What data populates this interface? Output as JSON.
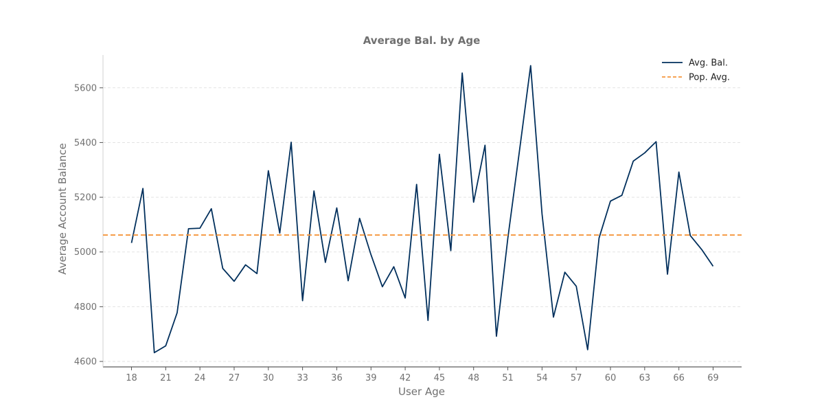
{
  "chart_data": {
    "type": "line",
    "title": "Average Bal. by Age",
    "xlabel": "User Age",
    "ylabel": "Average Account Balance",
    "xlim": [
      15.5,
      71.5
    ],
    "ylim": [
      4580,
      5720
    ],
    "x_ticks": [
      18,
      21,
      24,
      27,
      30,
      33,
      36,
      39,
      42,
      45,
      48,
      51,
      54,
      57,
      60,
      63,
      66,
      69
    ],
    "y_ticks": [
      4600,
      4800,
      5000,
      5200,
      5400,
      5600
    ],
    "grid": {
      "y": true,
      "x": false
    },
    "legend_position": "top-right",
    "series": [
      {
        "name": "Avg. Bal.",
        "color": "#002f5c",
        "style": "solid",
        "x": [
          18,
          19,
          20,
          21,
          22,
          23,
          24,
          25,
          26,
          27,
          28,
          29,
          30,
          31,
          32,
          33,
          34,
          35,
          36,
          37,
          38,
          39,
          40,
          41,
          42,
          43,
          44,
          45,
          46,
          47,
          48,
          49,
          50,
          51,
          52,
          53,
          54,
          55,
          56,
          57,
          58,
          59,
          60,
          61,
          62,
          63,
          64,
          65,
          66,
          67,
          68,
          69
        ],
        "values": [
          5033,
          5232,
          4632,
          4657,
          4778,
          5085,
          5087,
          5158,
          4940,
          4893,
          4953,
          4921,
          5297,
          5069,
          5401,
          4822,
          5223,
          4962,
          5161,
          4895,
          5123,
          4990,
          4873,
          4946,
          4832,
          5247,
          4750,
          5357,
          5005,
          5654,
          5182,
          5390,
          4692,
          5050,
          5363,
          5681,
          5139,
          4762,
          4926,
          4875,
          4643,
          5051,
          5186,
          5207,
          5332,
          5362,
          5403,
          4919,
          5292,
          5060,
          5009,
          4948
        ]
      },
      {
        "name": "Pop. Avg.",
        "color": "#f5963c",
        "style": "dashed",
        "constant": 5062
      }
    ]
  }
}
